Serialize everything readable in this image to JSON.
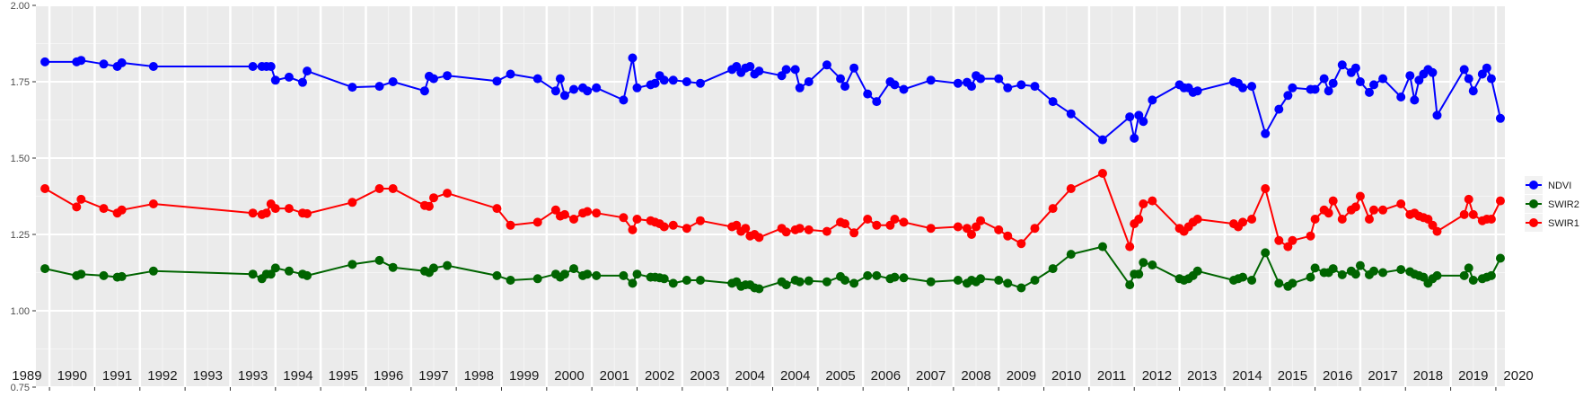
{
  "chart_data": {
    "type": "line",
    "title": "",
    "xlabel": "",
    "ylabel": "",
    "xlim": [
      1988.7,
      2021.2
    ],
    "ylim": [
      0.75,
      2.0
    ],
    "y_ticks": [
      "0.75",
      "1.00",
      "1.25",
      "1.50",
      "1.75",
      "2.00"
    ],
    "y_tick_values": [
      0.75,
      1.0,
      1.25,
      1.5,
      1.75,
      2.0
    ],
    "year_labels": [
      "1989",
      "1990",
      "1991",
      "1992",
      "1993",
      "1993",
      "1994",
      "1995",
      "1996",
      "1997",
      "1998",
      "1999",
      "2000",
      "2001",
      "2002",
      "2003",
      "2004",
      "2004",
      "2005",
      "2006",
      "2007",
      "2008",
      "2009",
      "2010",
      "2011",
      "2012",
      "2013",
      "2014",
      "2015",
      "2016",
      "2017",
      "2018",
      "2019",
      "2020"
    ],
    "legend": {
      "position": "right",
      "items": [
        "NDVI",
        "SWIR2",
        "SWIR1"
      ]
    },
    "grid": true,
    "series": [
      {
        "name": "NDVI",
        "color": "#0000ff",
        "x": [
          1988.9,
          1989.6,
          1989.7,
          1990.2,
          1990.5,
          1990.6,
          1991.3,
          1993.5,
          1993.7,
          1993.8,
          1993.9,
          1994.0,
          1994.3,
          1994.6,
          1994.7,
          1995.7,
          1996.3,
          1996.6,
          1997.3,
          1997.4,
          1997.5,
          1997.8,
          1998.9,
          1999.2,
          1999.8,
          2000.2,
          2000.3,
          2000.4,
          2000.6,
          2000.8,
          2000.9,
          2001.1,
          2001.7,
          2001.9,
          2002.0,
          2002.3,
          2002.4,
          2002.5,
          2002.6,
          2002.8,
          2003.1,
          2003.4,
          2004.1,
          2004.2,
          2004.3,
          2004.4,
          2004.5,
          2004.6,
          2004.7,
          2005.2,
          2005.3,
          2005.5,
          2005.6,
          2005.8,
          2006.2,
          2006.5,
          2006.6,
          2006.8,
          2007.1,
          2007.3,
          2007.6,
          2007.7,
          2007.9,
          2008.5,
          2009.1,
          2009.3,
          2009.4,
          2009.5,
          2009.6,
          2010.0,
          2010.2,
          2010.5,
          2010.8,
          2011.2,
          2011.6,
          2012.3,
          2012.9,
          2013.0,
          2013.1,
          2013.2,
          2013.4,
          2014.0,
          2014.1,
          2014.2,
          2014.3,
          2014.4,
          2015.2,
          2015.3,
          2015.4,
          2015.6,
          2015.9,
          2016.2,
          2016.4,
          2016.5,
          2016.9,
          2017.0,
          2017.2,
          2017.3,
          2017.4,
          2017.6,
          2017.8,
          2017.9,
          2018.0,
          2018.2,
          2018.3,
          2018.5,
          2018.9,
          2019.1,
          2019.2,
          2019.3,
          2019.4,
          2019.5,
          2019.6,
          2019.7,
          2020.3,
          2020.4,
          2020.5,
          2020.7,
          2020.8,
          2020.9,
          2021.1
        ],
        "values": [
          1.815,
          1.815,
          1.82,
          1.808,
          1.8,
          1.812,
          1.8,
          1.8,
          1.8,
          1.8,
          1.8,
          1.755,
          1.765,
          1.748,
          1.785,
          1.732,
          1.735,
          1.75,
          1.72,
          1.768,
          1.76,
          1.77,
          1.752,
          1.775,
          1.76,
          1.72,
          1.76,
          1.705,
          1.725,
          1.73,
          1.72,
          1.73,
          1.69,
          1.828,
          1.73,
          1.74,
          1.745,
          1.77,
          1.755,
          1.755,
          1.75,
          1.745,
          1.79,
          1.8,
          1.78,
          1.795,
          1.8,
          1.775,
          1.785,
          1.77,
          1.79,
          1.79,
          1.73,
          1.75,
          1.805,
          1.76,
          1.735,
          1.795,
          1.71,
          1.685,
          1.75,
          1.74,
          1.725,
          1.755,
          1.745,
          1.748,
          1.735,
          1.77,
          1.76,
          1.76,
          1.73,
          1.74,
          1.735,
          1.685,
          1.645,
          1.56,
          1.635,
          1.565,
          1.64,
          1.62,
          1.69,
          1.74,
          1.73,
          1.73,
          1.715,
          1.72,
          1.75,
          1.745,
          1.73,
          1.735,
          1.58,
          1.66,
          1.705,
          1.73,
          1.725,
          1.725,
          1.76,
          1.72,
          1.745,
          1.805,
          1.78,
          1.795,
          1.75,
          1.715,
          1.74,
          1.76,
          1.7,
          1.77,
          1.69,
          1.755,
          1.775,
          1.79,
          1.78,
          1.64,
          1.79,
          1.76,
          1.72,
          1.775,
          1.795,
          1.76,
          1.63
        ]
      },
      {
        "name": "SWIR2",
        "color": "#006400",
        "x": [
          1988.9,
          1989.6,
          1989.7,
          1990.2,
          1990.5,
          1990.6,
          1991.3,
          1993.5,
          1993.7,
          1993.8,
          1993.9,
          1994.0,
          1994.3,
          1994.6,
          1994.7,
          1995.7,
          1996.3,
          1996.6,
          1997.3,
          1997.4,
          1997.5,
          1997.8,
          1998.9,
          1999.2,
          1999.8,
          2000.2,
          2000.3,
          2000.4,
          2000.6,
          2000.8,
          2000.9,
          2001.1,
          2001.7,
          2001.9,
          2002.0,
          2002.3,
          2002.4,
          2002.5,
          2002.6,
          2002.8,
          2003.1,
          2003.4,
          2004.1,
          2004.2,
          2004.3,
          2004.4,
          2004.5,
          2004.6,
          2004.7,
          2005.2,
          2005.3,
          2005.5,
          2005.6,
          2005.8,
          2006.2,
          2006.5,
          2006.6,
          2006.8,
          2007.1,
          2007.3,
          2007.6,
          2007.7,
          2007.9,
          2008.5,
          2009.1,
          2009.3,
          2009.4,
          2009.5,
          2009.6,
          2010.0,
          2010.2,
          2010.5,
          2010.8,
          2011.2,
          2011.6,
          2012.3,
          2012.9,
          2013.0,
          2013.1,
          2013.2,
          2013.4,
          2014.0,
          2014.1,
          2014.2,
          2014.3,
          2014.4,
          2015.2,
          2015.3,
          2015.4,
          2015.6,
          2015.9,
          2016.2,
          2016.4,
          2016.5,
          2016.9,
          2017.0,
          2017.2,
          2017.3,
          2017.4,
          2017.6,
          2017.8,
          2017.9,
          2018.0,
          2018.2,
          2018.3,
          2018.5,
          2018.9,
          2019.1,
          2019.2,
          2019.3,
          2019.4,
          2019.5,
          2019.6,
          2019.7,
          2020.3,
          2020.4,
          2020.5,
          2020.7,
          2020.8,
          2020.9,
          2021.1
        ],
        "values": [
          1.138,
          1.115,
          1.12,
          1.115,
          1.11,
          1.112,
          1.13,
          1.12,
          1.105,
          1.12,
          1.12,
          1.14,
          1.13,
          1.12,
          1.115,
          1.152,
          1.165,
          1.142,
          1.13,
          1.125,
          1.14,
          1.148,
          1.115,
          1.1,
          1.105,
          1.12,
          1.11,
          1.12,
          1.138,
          1.115,
          1.12,
          1.115,
          1.115,
          1.09,
          1.12,
          1.11,
          1.11,
          1.108,
          1.105,
          1.09,
          1.1,
          1.1,
          1.09,
          1.095,
          1.08,
          1.085,
          1.085,
          1.075,
          1.072,
          1.095,
          1.085,
          1.1,
          1.095,
          1.098,
          1.095,
          1.112,
          1.1,
          1.09,
          1.115,
          1.115,
          1.105,
          1.11,
          1.108,
          1.095,
          1.1,
          1.09,
          1.1,
          1.095,
          1.105,
          1.1,
          1.09,
          1.075,
          1.1,
          1.138,
          1.185,
          1.21,
          1.085,
          1.12,
          1.12,
          1.158,
          1.15,
          1.105,
          1.1,
          1.105,
          1.115,
          1.13,
          1.1,
          1.105,
          1.11,
          1.1,
          1.19,
          1.09,
          1.08,
          1.09,
          1.11,
          1.14,
          1.125,
          1.125,
          1.138,
          1.118,
          1.13,
          1.12,
          1.148,
          1.118,
          1.13,
          1.125,
          1.135,
          1.128,
          1.12,
          1.115,
          1.11,
          1.09,
          1.105,
          1.115,
          1.115,
          1.14,
          1.1,
          1.105,
          1.11,
          1.115,
          1.172
        ]
      },
      {
        "name": "SWIR1",
        "color": "#ff0000",
        "x": [
          1988.9,
          1989.6,
          1989.7,
          1990.2,
          1990.5,
          1990.6,
          1991.3,
          1993.5,
          1993.7,
          1993.8,
          1993.9,
          1994.0,
          1994.3,
          1994.6,
          1994.7,
          1995.7,
          1996.3,
          1996.6,
          1997.3,
          1997.4,
          1997.5,
          1997.8,
          1998.9,
          1999.2,
          1999.8,
          2000.2,
          2000.3,
          2000.4,
          2000.6,
          2000.8,
          2000.9,
          2001.1,
          2001.7,
          2001.9,
          2002.0,
          2002.3,
          2002.4,
          2002.5,
          2002.6,
          2002.8,
          2003.1,
          2003.4,
          2004.1,
          2004.2,
          2004.3,
          2004.4,
          2004.5,
          2004.6,
          2004.7,
          2005.2,
          2005.3,
          2005.5,
          2005.6,
          2005.8,
          2006.2,
          2006.5,
          2006.6,
          2006.8,
          2007.1,
          2007.3,
          2007.6,
          2007.7,
          2007.9,
          2008.5,
          2009.1,
          2009.3,
          2009.4,
          2009.5,
          2009.6,
          2010.0,
          2010.2,
          2010.5,
          2010.8,
          2011.2,
          2011.6,
          2012.3,
          2012.9,
          2013.0,
          2013.1,
          2013.2,
          2013.4,
          2014.0,
          2014.1,
          2014.2,
          2014.3,
          2014.4,
          2015.2,
          2015.3,
          2015.4,
          2015.6,
          2015.9,
          2016.2,
          2016.4,
          2016.5,
          2016.9,
          2017.0,
          2017.2,
          2017.3,
          2017.4,
          2017.6,
          2017.8,
          2017.9,
          2018.0,
          2018.2,
          2018.3,
          2018.5,
          2018.9,
          2019.1,
          2019.2,
          2019.3,
          2019.4,
          2019.5,
          2019.6,
          2019.7,
          2020.3,
          2020.4,
          2020.5,
          2020.7,
          2020.8,
          2020.9,
          2021.1
        ],
        "values": [
          1.4,
          1.34,
          1.365,
          1.335,
          1.32,
          1.33,
          1.35,
          1.32,
          1.315,
          1.32,
          1.35,
          1.335,
          1.335,
          1.32,
          1.318,
          1.355,
          1.4,
          1.4,
          1.345,
          1.342,
          1.37,
          1.385,
          1.335,
          1.28,
          1.29,
          1.33,
          1.31,
          1.315,
          1.3,
          1.32,
          1.325,
          1.32,
          1.305,
          1.265,
          1.3,
          1.295,
          1.29,
          1.285,
          1.275,
          1.28,
          1.27,
          1.295,
          1.275,
          1.28,
          1.26,
          1.27,
          1.245,
          1.25,
          1.24,
          1.27,
          1.258,
          1.265,
          1.27,
          1.265,
          1.26,
          1.29,
          1.285,
          1.255,
          1.3,
          1.28,
          1.28,
          1.3,
          1.29,
          1.27,
          1.275,
          1.27,
          1.25,
          1.275,
          1.295,
          1.265,
          1.245,
          1.22,
          1.27,
          1.335,
          1.4,
          1.45,
          1.21,
          1.285,
          1.3,
          1.35,
          1.36,
          1.27,
          1.26,
          1.275,
          1.29,
          1.3,
          1.285,
          1.275,
          1.29,
          1.3,
          1.4,
          1.23,
          1.21,
          1.23,
          1.245,
          1.3,
          1.33,
          1.32,
          1.36,
          1.3,
          1.33,
          1.34,
          1.375,
          1.3,
          1.33,
          1.33,
          1.35,
          1.315,
          1.32,
          1.31,
          1.305,
          1.3,
          1.28,
          1.26,
          1.315,
          1.365,
          1.315,
          1.295,
          1.3,
          1.3,
          1.36
        ]
      }
    ]
  }
}
